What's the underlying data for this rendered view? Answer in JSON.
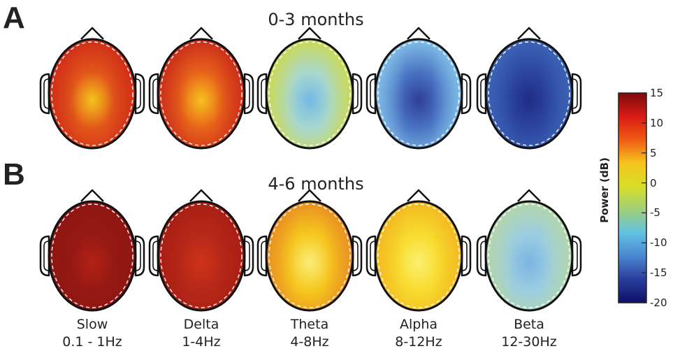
{
  "panels": {
    "a": {
      "letter": "A",
      "title": "0-3 months",
      "heads": [
        {
          "band": "slow",
          "edge": "#ce2a18",
          "mid": "#e2561a",
          "center": "#f4c51c"
        },
        {
          "band": "delta",
          "edge": "#c8281a",
          "mid": "#e8621a",
          "center": "#f6c21e"
        },
        {
          "band": "theta",
          "edge": "#cdd94a",
          "mid": "#a9d8cf",
          "center": "#74b8e6"
        },
        {
          "band": "alpha",
          "edge": "#86c6ec",
          "mid": "#4a73c2",
          "center": "#2e3f98"
        },
        {
          "band": "beta",
          "edge": "#3e66b8",
          "mid": "#2c46a0",
          "center": "#1f2c86"
        }
      ]
    },
    "b": {
      "letter": "B",
      "title": "4-6 months",
      "heads": [
        {
          "band": "slow",
          "edge": "#8e1612",
          "mid": "#961814",
          "center": "#b22214"
        },
        {
          "band": "delta",
          "edge": "#a81e14",
          "mid": "#b62818",
          "center": "#d0321a"
        },
        {
          "band": "theta",
          "edge": "#e88a22",
          "mid": "#f6c81e",
          "center": "#f8ee7a"
        },
        {
          "band": "alpha",
          "edge": "#f2b620",
          "mid": "#f8dc2e",
          "center": "#faf070"
        },
        {
          "band": "beta",
          "edge": "#b6d7a6",
          "mid": "#9ccde0",
          "center": "#7ab4e2"
        }
      ]
    }
  },
  "bands": [
    {
      "name": "Slow",
      "range": "0.1 - 1Hz"
    },
    {
      "name": "Delta",
      "range": "1-4Hz"
    },
    {
      "name": "Theta",
      "range": "4-8Hz"
    },
    {
      "name": "Alpha",
      "range": "8-12Hz"
    },
    {
      "name": "Beta",
      "range": "12-30Hz"
    }
  ],
  "colorbar": {
    "label": "Power (dB)",
    "ticks": [
      "15",
      "10",
      "5",
      "0",
      "-5",
      "-10",
      "-15",
      "-20"
    ],
    "colors": [
      "#7a0c0c",
      "#d81a14",
      "#f05a14",
      "#f6c41c",
      "#d8de28",
      "#9fd07a",
      "#62c2e4",
      "#4b86d0",
      "#2a3d9c",
      "#0c1068"
    ]
  }
}
